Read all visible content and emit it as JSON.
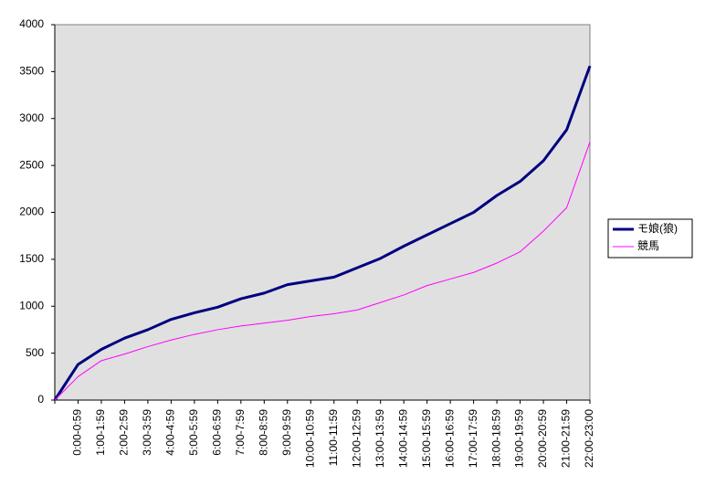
{
  "chart_data": {
    "type": "line",
    "categories": [
      null,
      "0:00-0:59",
      "1:00-1:59",
      "2:00-2:59",
      "3:00-3:59",
      "4:00-4:59",
      "5:00-5:59",
      "6:00-6:59",
      "7:00-7:59",
      "8:00-8:59",
      "9:00-9:59",
      "10:00-10:59",
      "11:00-11:59",
      "12:00-12:59",
      "13:00-13:59",
      "14:00-14:59",
      "15:00-15:59",
      "16:00-16:59",
      "17:00-17:59",
      "18:00-18:59",
      "19:00-19:59",
      "20:00-20:59",
      "21:00-21:59",
      "22:00-23:00"
    ],
    "series": [
      {
        "name": "モ娘(狼)",
        "color": "#000080",
        "values": [
          0,
          380,
          540,
          660,
          750,
          860,
          930,
          990,
          1080,
          1140,
          1230,
          1270,
          1310,
          1410,
          1510,
          1640,
          1760,
          1880,
          2000,
          2180,
          2330,
          2550,
          2880,
          3560
        ]
      },
      {
        "name": "競馬",
        "color": "#ff00ff",
        "values": [
          0,
          250,
          420,
          490,
          570,
          640,
          700,
          750,
          790,
          820,
          850,
          890,
          920,
          960,
          1040,
          1120,
          1220,
          1290,
          1360,
          1460,
          1580,
          1800,
          2050,
          2750
        ]
      }
    ],
    "ylim": [
      0,
      4000
    ],
    "yticks": [
      0,
      500,
      1000,
      1500,
      2000,
      2500,
      3000,
      3500,
      4000
    ],
    "grid": false,
    "legend": "right"
  }
}
